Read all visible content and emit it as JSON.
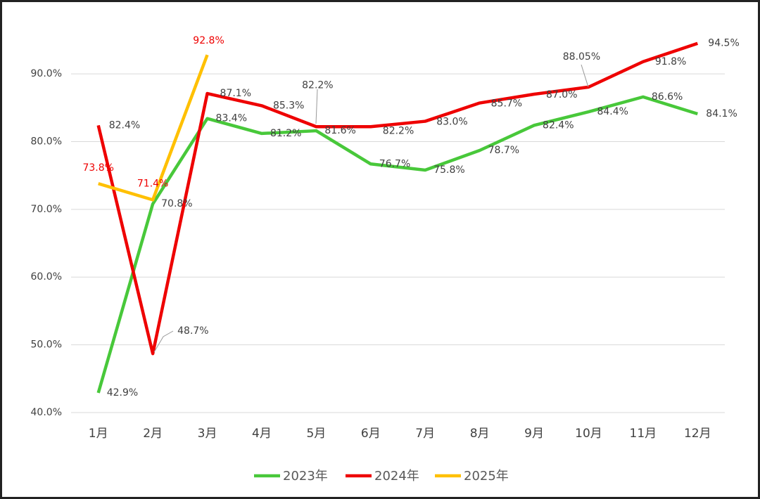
{
  "chart_data": {
    "type": "line",
    "categories": [
      "1月",
      "2月",
      "3月",
      "4月",
      "5月",
      "6月",
      "7月",
      "8月",
      "9月",
      "10月",
      "11月",
      "12月"
    ],
    "series": [
      {
        "name": "2023年",
        "color": "#48c83a",
        "values": [
          42.9,
          70.8,
          83.4,
          81.2,
          81.6,
          76.7,
          75.8,
          78.7,
          82.4,
          84.4,
          86.6,
          84.1
        ],
        "value_labels": [
          "42.9%",
          "70.8%",
          "83.4%",
          "81.2%",
          "81.6%",
          "76.7%",
          "75.8%",
          "78.7%",
          "82.4%",
          "84.4%",
          "86.6%",
          "84.1%"
        ]
      },
      {
        "name": "2024年",
        "color": "#ee0000",
        "values": [
          82.4,
          48.7,
          87.1,
          85.3,
          82.2,
          82.2,
          83.0,
          85.7,
          87.0,
          88.05,
          91.8,
          94.5
        ],
        "value_labels": [
          "82.4%",
          "48.7%",
          "87.1%",
          "85.3%",
          "82.2%",
          "82.2%",
          "83.0%",
          "85.7%",
          "87.0%",
          "88.05%",
          "91.8%",
          "94.5%"
        ]
      },
      {
        "name": "2025年",
        "color": "#ffc000",
        "values": [
          73.8,
          71.4,
          92.8,
          null,
          null,
          null,
          null,
          null,
          null,
          null,
          null,
          null
        ],
        "value_labels": [
          "73.8%",
          "71.4%",
          "92.8%",
          null,
          null,
          null,
          null,
          null,
          null,
          null,
          null,
          null
        ]
      }
    ],
    "ylim": [
      40,
      98
    ],
    "yticks": [
      {
        "value": 40,
        "label": "40.0%"
      },
      {
        "value": 50,
        "label": "50.0%"
      },
      {
        "value": 60,
        "label": "60.0%"
      },
      {
        "value": 70,
        "label": "70.0%"
      },
      {
        "value": 80,
        "label": "80.0%"
      },
      {
        "value": 90,
        "label": "90.0%"
      }
    ],
    "grid": true,
    "legend": "bottom"
  }
}
